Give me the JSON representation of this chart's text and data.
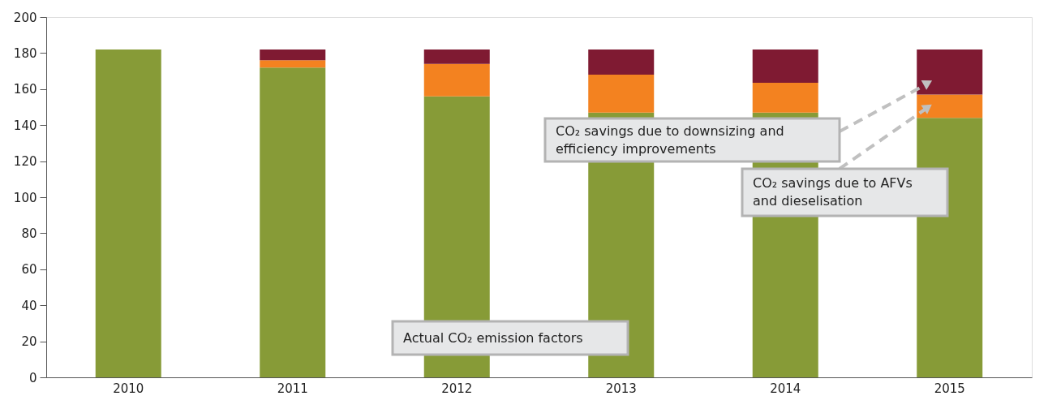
{
  "chart_data": {
    "type": "bar",
    "stacked": true,
    "categories": [
      "2010",
      "2011",
      "2012",
      "2013",
      "2014",
      "2015"
    ],
    "series": [
      {
        "color": "#879b37",
        "values": [
          182,
          172,
          156,
          147,
          147,
          144
        ]
      },
      {
        "color": "#f38220",
        "values": [
          null,
          4,
          18,
          21,
          16.5,
          13
        ]
      },
      {
        "color": "#7f1a32",
        "values": [
          null,
          6,
          8,
          14,
          18.5,
          25
        ]
      }
    ],
    "ylim": [
      0,
      200
    ],
    "yticks": [
      0,
      20,
      40,
      60,
      80,
      100,
      120,
      140,
      160,
      180,
      200
    ],
    "grid": false,
    "legend": false,
    "annotations": [
      "CO₂ savings due to downsizing and efficiency improvements",
      "CO₂ savings due to AFVs and dieselisation",
      "Actual CO₂ emission factors"
    ]
  }
}
